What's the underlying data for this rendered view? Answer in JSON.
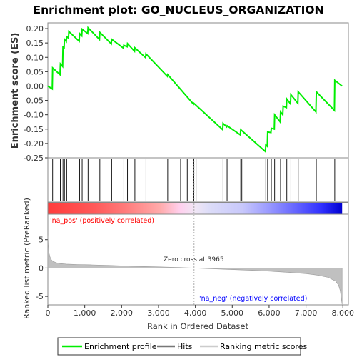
{
  "chart_data": {
    "type": "line",
    "title": "Enrichment plot: GO_NUCLEUS_ORGANIZATION",
    "top_panel": {
      "ylabel": "Enrichment score (ES)",
      "ylim": [
        -0.25,
        0.22
      ],
      "yticks": [
        -0.25,
        -0.2,
        -0.15,
        -0.1,
        -0.05,
        0.0,
        0.05,
        0.1,
        0.15,
        0.2
      ],
      "ytick_labels": [
        "-0.25",
        "-0.20",
        "-0.15",
        "-0.10",
        "-0.05",
        "0.00",
        "0.05",
        "0.10",
        "0.15",
        "0.20"
      ],
      "series": [
        {
          "name": "Enrichment profile",
          "color": "#00ff00",
          "x": [
            0,
            120,
            130,
            330,
            340,
            400,
            410,
            440,
            450,
            500,
            510,
            560,
            570,
            850,
            860,
            920,
            930,
            1080,
            1090,
            1400,
            1410,
            1720,
            1730,
            2050,
            2060,
            2150,
            2160,
            2350,
            2360,
            2650,
            2660,
            3240,
            3250,
            3950,
            3960,
            4740,
            4750,
            4850,
            4860,
            5220,
            5230,
            5900,
            5910,
            5950,
            5960,
            6050,
            6060,
            6140,
            6150,
            6300,
            6310,
            6370,
            6380,
            6470,
            6480,
            6580,
            6590,
            6780,
            6790,
            7270,
            7280,
            7770,
            7780,
            7980
          ],
          "y": [
            0.0,
            -0.01,
            0.063,
            0.04,
            0.077,
            0.068,
            0.14,
            0.13,
            0.163,
            0.155,
            0.172,
            0.167,
            0.19,
            0.156,
            0.183,
            0.175,
            0.198,
            0.183,
            0.203,
            0.162,
            0.187,
            0.147,
            0.163,
            0.132,
            0.142,
            0.137,
            0.148,
            0.121,
            0.133,
            0.099,
            0.112,
            0.034,
            0.04,
            -0.063,
            -0.06,
            -0.152,
            -0.13,
            -0.142,
            -0.138,
            -0.17,
            -0.152,
            -0.228,
            -0.205,
            -0.21,
            -0.16,
            -0.162,
            -0.147,
            -0.15,
            -0.1,
            -0.125,
            -0.09,
            -0.1,
            -0.07,
            -0.075,
            -0.045,
            -0.062,
            -0.03,
            -0.06,
            -0.02,
            -0.09,
            -0.02,
            -0.085,
            0.02,
            0.0
          ]
        }
      ]
    },
    "hits_panel": {
      "hit_positions": [
        130,
        340,
        410,
        450,
        510,
        570,
        860,
        930,
        1090,
        1410,
        1730,
        2060,
        2160,
        2360,
        2660,
        3250,
        3600,
        3780,
        3960,
        4020,
        4750,
        4860,
        5230,
        5260,
        5910,
        5960,
        6060,
        6150,
        6310,
        6380,
        6480,
        6590,
        6790,
        7280,
        7780
      ]
    },
    "rank_panel": {
      "ylabel": "Ranked list metric (PreRanked)",
      "ylim": [
        -6.5,
        9.5
      ],
      "yticks": [
        -5,
        0,
        5
      ],
      "ytick_labels": [
        "-5",
        "0",
        "5"
      ],
      "series_name": "Ranking metric scores",
      "curve_x": [
        0,
        10,
        30,
        60,
        100,
        150,
        220,
        320,
        500,
        800,
        1200,
        1700,
        2300,
        3000,
        3965,
        4800,
        5500,
        6000,
        6500,
        7000,
        7300,
        7600,
        7800,
        7880,
        7930,
        7960,
        7980
      ],
      "curve_y": [
        5.8,
        4.2,
        2.7,
        1.9,
        1.4,
        1.15,
        0.95,
        0.8,
        0.7,
        0.62,
        0.55,
        0.45,
        0.32,
        0.2,
        0.0,
        -0.22,
        -0.4,
        -0.55,
        -0.75,
        -1.0,
        -1.25,
        -1.65,
        -2.3,
        -3.0,
        -4.0,
        -5.5,
        -6.4
      ],
      "zero_cross_label": "Zero cross at 3965",
      "zero_cross": 3965,
      "pos_label": "'na_pos' (positively correlated)",
      "neg_label": "'na_neg' (negatively correlated)",
      "pos_color": "#ff0000",
      "neg_color": "#0000ff"
    },
    "xlabel": "Rank in Ordered Dataset",
    "xlim": [
      0,
      8150
    ],
    "xticks": [
      0,
      1000,
      2000,
      3000,
      4000,
      5000,
      6000,
      7000,
      8000
    ],
    "xtick_labels": [
      "0",
      "1,000",
      "2,000",
      "3,000",
      "4,000",
      "5,000",
      "6,000",
      "7,000",
      "8,000"
    ],
    "total_ranks": 7980,
    "legend": {
      "placement": "bottom",
      "items": [
        "Enrichment profile",
        "Hits",
        "Ranking metric scores"
      ],
      "colors": [
        "#00ff00",
        "#777777",
        "#cccccc"
      ]
    }
  }
}
